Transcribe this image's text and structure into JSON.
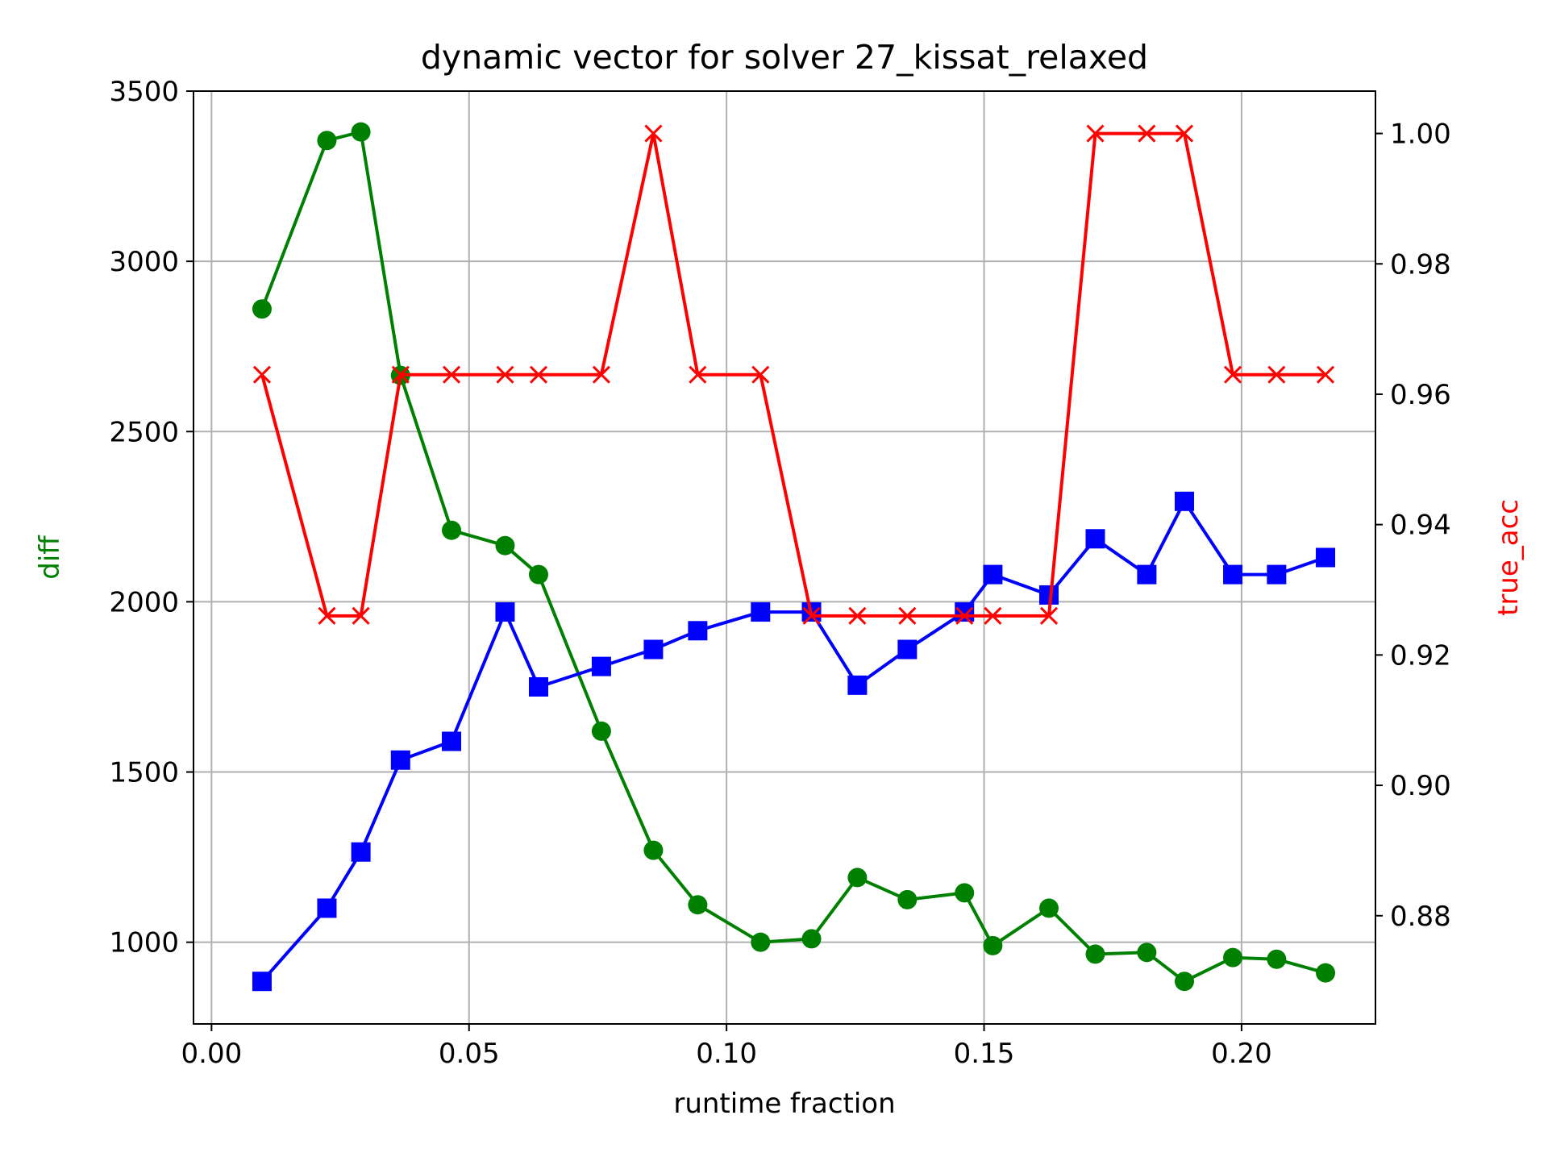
{
  "chart_data": {
    "type": "line",
    "title": "dynamic vector for solver 27_kissat_relaxed",
    "xlabel": "runtime fraction",
    "ylabel": "diff",
    "ylabel_color": "#008000",
    "y2label": "true_acc",
    "y2label_color": "#ff0000",
    "xlim": [
      -0.0035,
      0.226
    ],
    "ylim": [
      760,
      3500
    ],
    "y2lim": [
      0.8634,
      1.0065
    ],
    "x_ticks": [
      "0.00",
      "0.05",
      "0.10",
      "0.15",
      "0.20"
    ],
    "x_tick_values": [
      0.0,
      0.05,
      0.1,
      0.15,
      0.2
    ],
    "y_ticks": [
      "1000",
      "1500",
      "2000",
      "2500",
      "3000",
      "3500"
    ],
    "y_tick_values": [
      1000,
      1500,
      2000,
      2500,
      3000,
      3500
    ],
    "y2_ticks": [
      "0.88",
      "0.90",
      "0.92",
      "0.94",
      "0.96",
      "0.98",
      "1.00"
    ],
    "y2_tick_values": [
      0.88,
      0.9,
      0.92,
      0.94,
      0.96,
      0.98,
      1.0
    ],
    "grid": true,
    "x": [
      0.0098,
      0.0224,
      0.029,
      0.0367,
      0.0466,
      0.057,
      0.0635,
      0.0757,
      0.0858,
      0.0944,
      0.1066,
      0.1165,
      0.1254,
      0.1351,
      0.1462,
      0.1517,
      0.1626,
      0.1716,
      0.1816,
      0.1889,
      0.1983,
      0.2068,
      0.2163
    ],
    "series": [
      {
        "axis": "left",
        "color": "#008000",
        "marker": "circle",
        "values": [
          2860,
          3355,
          3380,
          2665,
          2210,
          2165,
          2080,
          1620,
          1270,
          1110,
          1000,
          1010,
          1190,
          1125,
          1145,
          990,
          1100,
          965,
          970,
          885,
          955,
          950,
          910
        ]
      },
      {
        "axis": "left",
        "color": "#0000ff",
        "marker": "square",
        "values": [
          885,
          1100,
          1265,
          1535,
          1590,
          1970,
          1750,
          1810,
          1860,
          1915,
          1970,
          1970,
          1755,
          1860,
          1970,
          2080,
          2020,
          2185,
          2080,
          2295,
          2080,
          2080,
          2130
        ]
      },
      {
        "axis": "right",
        "color": "#ff0000",
        "marker": "x",
        "values": [
          0.963,
          0.926,
          0.926,
          0.963,
          0.963,
          0.963,
          0.963,
          0.963,
          1.0,
          0.963,
          0.963,
          0.926,
          0.926,
          0.926,
          0.926,
          0.926,
          0.926,
          1.0,
          1.0,
          1.0,
          0.963,
          0.963,
          0.963
        ]
      }
    ]
  }
}
